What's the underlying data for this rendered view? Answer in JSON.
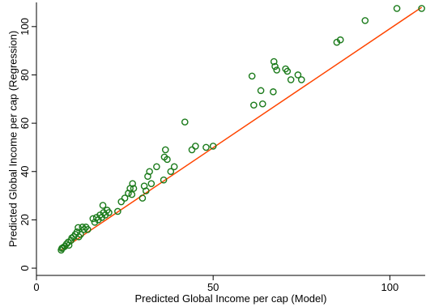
{
  "chart_data": {
    "type": "scatter",
    "xlabel": "Predicted Global Income per cap (Model)",
    "ylabel": "Predicted Global Income per cap (Regression)",
    "xlim": [
      0,
      110
    ],
    "ylim": [
      -3,
      110
    ],
    "xticks": [
      0,
      50,
      100
    ],
    "yticks": [
      0,
      20,
      40,
      60,
      80,
      100
    ],
    "grid": false,
    "colors": {
      "points": "#1a7a1a",
      "fit_line": "#ff4500"
    },
    "fit_line": {
      "x": [
        7,
        109
      ],
      "y": [
        7.5,
        108
      ]
    },
    "points": [
      [
        7,
        7.5
      ],
      [
        7.2,
        8.2
      ],
      [
        7.5,
        8.5
      ],
      [
        8,
        9
      ],
      [
        8.5,
        10
      ],
      [
        9,
        10.8
      ],
      [
        9.2,
        9.5
      ],
      [
        9.8,
        11.5
      ],
      [
        10,
        12.5
      ],
      [
        10.5,
        13
      ],
      [
        11,
        14
      ],
      [
        11.5,
        15
      ],
      [
        11.8,
        16.8
      ],
      [
        12,
        13
      ],
      [
        12.5,
        14
      ],
      [
        13,
        17
      ],
      [
        13.5,
        16
      ],
      [
        14,
        17
      ],
      [
        14.5,
        16
      ],
      [
        16,
        20.5
      ],
      [
        16.5,
        19
      ],
      [
        17,
        21
      ],
      [
        17.5,
        20
      ],
      [
        18,
        22
      ],
      [
        18.5,
        21
      ],
      [
        18.8,
        26
      ],
      [
        19,
        23
      ],
      [
        19.5,
        22
      ],
      [
        20,
        24
      ],
      [
        20.5,
        23
      ],
      [
        23,
        23.5
      ],
      [
        24,
        27.5
      ],
      [
        25,
        29
      ],
      [
        26,
        31
      ],
      [
        26.5,
        33
      ],
      [
        27,
        30.5
      ],
      [
        27.2,
        35
      ],
      [
        27.5,
        33
      ],
      [
        30,
        29
      ],
      [
        30.5,
        34
      ],
      [
        31,
        32
      ],
      [
        31.5,
        38
      ],
      [
        32,
        40
      ],
      [
        32.5,
        35
      ],
      [
        34,
        42
      ],
      [
        36,
        36.5
      ],
      [
        36.2,
        46
      ],
      [
        36.5,
        49
      ],
      [
        37,
        45
      ],
      [
        38,
        40
      ],
      [
        39,
        42
      ],
      [
        42,
        60.5
      ],
      [
        44,
        49
      ],
      [
        45,
        50.5
      ],
      [
        48,
        50
      ],
      [
        50,
        50.5
      ],
      [
        61,
        79.5
      ],
      [
        61.5,
        67.5
      ],
      [
        63.5,
        73.5
      ],
      [
        64,
        68
      ],
      [
        67,
        73
      ],
      [
        67.2,
        85.5
      ],
      [
        67.5,
        83.5
      ],
      [
        68,
        82
      ],
      [
        70.5,
        82.5
      ],
      [
        71,
        81.5
      ],
      [
        72,
        78
      ],
      [
        74,
        80
      ],
      [
        75,
        78
      ],
      [
        85,
        93.5
      ],
      [
        86,
        94.5
      ],
      [
        93,
        102.5
      ],
      [
        102,
        107.5
      ],
      [
        109,
        107.5
      ]
    ]
  }
}
